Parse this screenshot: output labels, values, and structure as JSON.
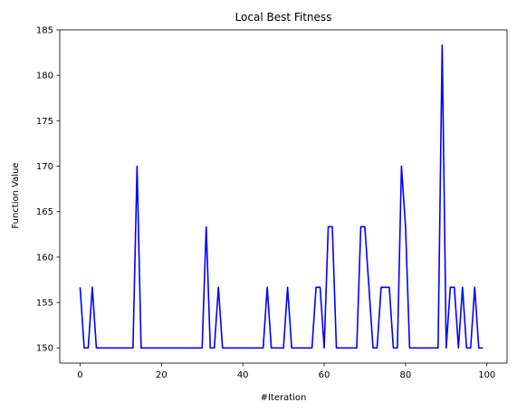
{
  "chart_data": {
    "type": "line",
    "title": "Local Best Fitness",
    "xlabel": "#Iteration",
    "ylabel": "Function Value",
    "xlim": [
      -5,
      104.95
    ],
    "ylim": [
      148.33,
      185
    ],
    "xticks": [
      0,
      20,
      40,
      60,
      80,
      100
    ],
    "yticks": [
      150,
      155,
      160,
      165,
      170,
      175,
      180,
      185
    ],
    "grid": false,
    "legend": "none",
    "series": [
      {
        "color": "#0000ff",
        "x": [
          0,
          1,
          2,
          3,
          4,
          5,
          6,
          7,
          8,
          9,
          10,
          11,
          12,
          13,
          14,
          15,
          16,
          17,
          18,
          19,
          20,
          21,
          22,
          23,
          24,
          25,
          26,
          27,
          28,
          29,
          30,
          31,
          32,
          33,
          34,
          35,
          36,
          37,
          38,
          39,
          40,
          41,
          42,
          43,
          44,
          45,
          46,
          47,
          48,
          49,
          50,
          51,
          52,
          53,
          54,
          55,
          56,
          57,
          58,
          59,
          60,
          61,
          62,
          63,
          64,
          65,
          66,
          67,
          68,
          69,
          70,
          71,
          72,
          73,
          74,
          75,
          76,
          77,
          78,
          79,
          80,
          81,
          82,
          83,
          84,
          85,
          86,
          87,
          88,
          89,
          90,
          91,
          92,
          93,
          94,
          95,
          96,
          97,
          98,
          99
        ],
        "y": [
          156.67,
          150,
          150,
          156.67,
          150,
          150,
          150,
          150,
          150,
          150,
          150,
          150,
          150,
          150,
          170,
          150,
          150,
          150,
          150,
          150,
          150,
          150,
          150,
          150,
          150,
          150,
          150,
          150,
          150,
          150,
          150,
          163.33,
          150,
          150,
          156.67,
          150,
          150,
          150,
          150,
          150,
          150,
          150,
          150,
          150,
          150,
          150,
          156.67,
          150,
          150,
          150,
          150,
          156.67,
          150,
          150,
          150,
          150,
          150,
          150,
          156.67,
          156.67,
          150,
          163.33,
          163.33,
          150,
          150,
          150,
          150,
          150,
          150,
          163.33,
          163.33,
          156.67,
          150,
          150,
          156.67,
          156.67,
          156.67,
          150,
          150,
          170,
          163.33,
          150,
          150,
          150,
          150,
          150,
          150,
          150,
          150,
          183.33,
          150,
          156.67,
          156.67,
          150,
          156.67,
          150,
          150,
          156.67,
          150,
          150
        ]
      }
    ]
  }
}
